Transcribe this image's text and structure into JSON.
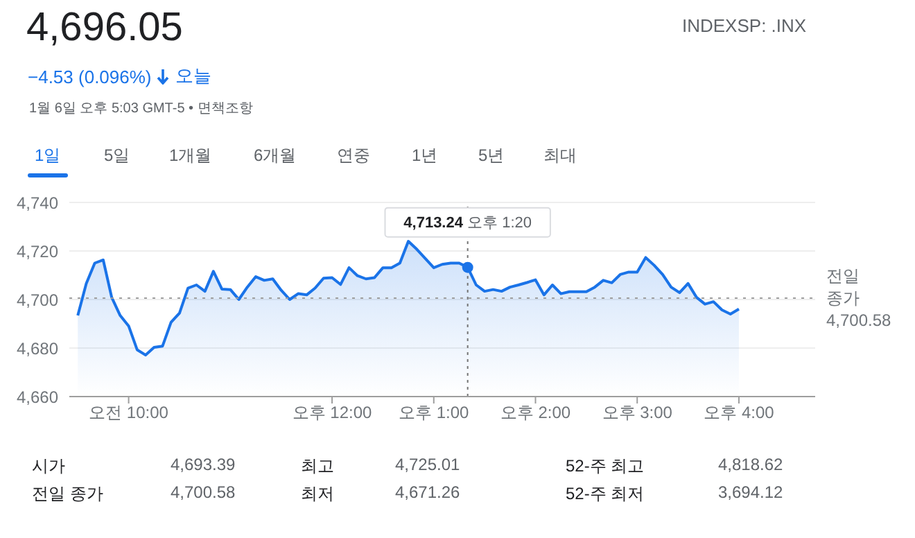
{
  "chart_data": {
    "type": "area",
    "annotations": [
      "4,696.05",
      "INDEXSP: .INX",
      "−4.53 (0.096%)",
      "오늘",
      "1월 6일 오후 5:03 GMT-5 • 면책조항",
      "1일",
      "5일",
      "1개월",
      "6개월",
      "연중",
      "1년",
      "5년",
      "최대",
      "시가",
      "4,693.39",
      "최고",
      "4,725.01",
      "52-주 최고",
      "4,818.62",
      "전일 종가",
      "4,700.58",
      "최저",
      "4,671.26",
      "52-주 최저",
      "3,694.12",
      {
        "text": "4,713.24 오후 1:20",
        "y": 4713.24
      }
    ],
    "categories": [
      null,
      null,
      null,
      null,
      null,
      null,
      "오전 10:00",
      null,
      null,
      null,
      null,
      null,
      null,
      null,
      null,
      null,
      null,
      null,
      null,
      null,
      null,
      null,
      null,
      null,
      null,
      null,
      null,
      null,
      null,
      null,
      "오후 12:00",
      null,
      null,
      null,
      null,
      null,
      null,
      null,
      null,
      null,
      null,
      null,
      "오후 1:00",
      null,
      null,
      null,
      null,
      null,
      null,
      null,
      null,
      null,
      null,
      null,
      "오후 2:00",
      null,
      null,
      null,
      null,
      null,
      null,
      null,
      null,
      null,
      null,
      null,
      "오후 3:00",
      null,
      null,
      null,
      null,
      null,
      null,
      null,
      null,
      null,
      null,
      null,
      "오후 4:00",
      null,
      null,
      null,
      null,
      null,
      null,
      null,
      null,
      null
    ],
    "series": [
      {
        "color": "#1a73e8",
        "values": [
          4693.4,
          4706.6,
          4715,
          4716.3,
          4700.9,
          4693.4,
          4689.1,
          4679.3,
          4677.1,
          4680.3,
          4680.8,
          4690.6,
          4694.4,
          4704.7,
          4706,
          4703.4,
          4711.6,
          4704.3,
          4704.1,
          4700,
          4705.1,
          4709.4,
          4707.9,
          4708.5,
          4703.8,
          4700,
          4702.4,
          4701.9,
          4704.7,
          4708.8,
          4709,
          4706.2,
          4713.1,
          4709.8,
          4708.5,
          4709,
          4713.1,
          4713.1,
          4715,
          4724,
          4720.7,
          4716.9,
          4713.1,
          4714.5,
          4715,
          4715,
          4713.24,
          4706,
          4703.4,
          4704.1,
          4703.4,
          4705.1,
          4706,
          4707,
          4708.1,
          4701.9,
          4706,
          4702.4,
          4703.2,
          4703.2,
          4703.2,
          4705.1,
          4707.9,
          4706.9,
          4710.3,
          4711.3,
          4711.3,
          4717.3,
          4714.1,
          4710.3,
          4705.1,
          4702.8,
          4706.6,
          4700.9,
          4698.1,
          4699.1,
          4695.7,
          4694,
          4696.05,
          null,
          null,
          null,
          null,
          null,
          null,
          null,
          null,
          null
        ]
      }
    ],
    "ylim": [
      4660,
      4740
    ],
    "yticks": [
      {
        "value": 4660,
        "label": "4,660"
      },
      {
        "value": 4680,
        "label": "4,680"
      },
      {
        "value": 4700,
        "label": "4,700"
      },
      {
        "value": 4720,
        "label": "4,720"
      },
      {
        "value": 4740,
        "label": "4,740"
      }
    ],
    "ref_lines": [
      {
        "axis": "y",
        "value": 4700.58,
        "label": "전일 종가 4,700.58",
        "color": "#9e9e9e",
        "line_style": "dotted"
      }
    ],
    "grid": "y",
    "marker": "none",
    "line_style": "solid"
  }
}
